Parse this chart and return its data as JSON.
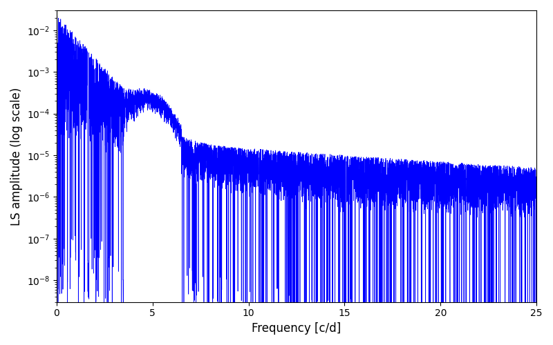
{
  "xlabel": "Frequency [c/d]",
  "ylabel": "LS amplitude (log scale)",
  "xlim": [
    0,
    25
  ],
  "ylim": [
    3e-09,
    0.03
  ],
  "line_color": "blue",
  "line_width": 0.5,
  "figsize": [
    8.0,
    5.0
  ],
  "dpi": 100,
  "background_color": "#ffffff",
  "seed": 42,
  "n_points": 8000,
  "freq_max": 25.0
}
